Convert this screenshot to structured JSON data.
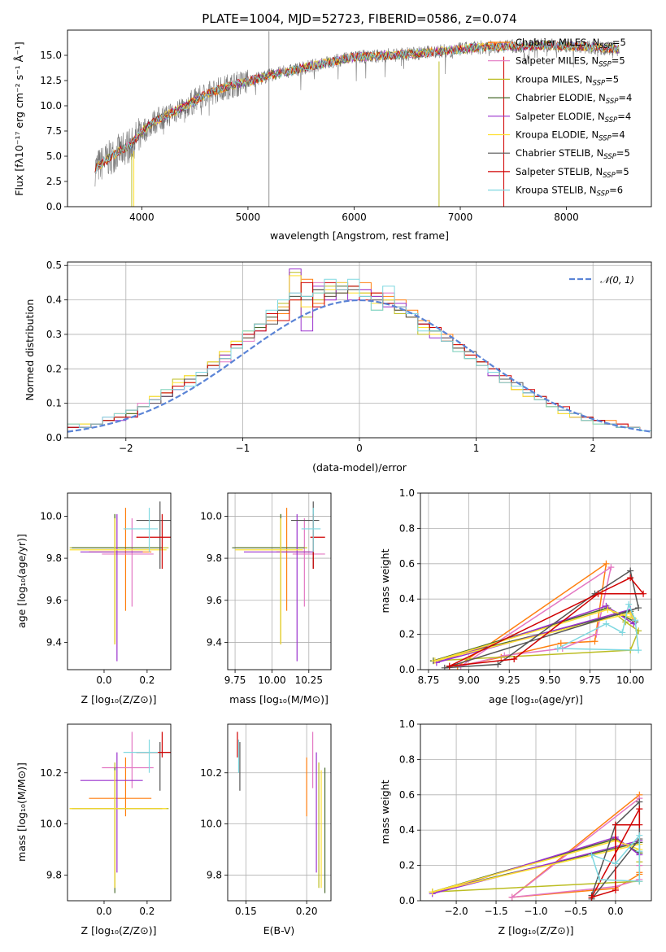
{
  "chart_data": [
    {
      "id": "spectrum",
      "type": "line",
      "title": "PLATE=1004, MJD=52723, FIBERID=0586, z=0.074",
      "xlabel": "wavelength [Angstrom, rest frame]",
      "ylabel": "Flux [fλ10⁻¹⁷ erg cm⁻² s⁻¹ Å⁻¹]",
      "xlim": [
        3300,
        8800
      ],
      "ylim": [
        0,
        17.5
      ],
      "xticks": [
        4000,
        5000,
        6000,
        7000,
        8000
      ],
      "yticks": [
        0.0,
        2.5,
        5.0,
        7.5,
        10.0,
        12.5,
        15.0
      ],
      "observed_continuum": [
        [
          3560,
          3.8
        ],
        [
          3650,
          4.5
        ],
        [
          3800,
          5.6
        ],
        [
          3900,
          6.2
        ],
        [
          4000,
          7.4
        ],
        [
          4100,
          8.3
        ],
        [
          4200,
          8.9
        ],
        [
          4400,
          9.9
        ],
        [
          4600,
          11.1
        ],
        [
          4800,
          11.9
        ],
        [
          5000,
          12.4
        ],
        [
          5200,
          13.0
        ],
        [
          5500,
          13.7
        ],
        [
          5800,
          14.4
        ],
        [
          6000,
          14.8
        ],
        [
          6300,
          15.0
        ],
        [
          6600,
          15.2
        ],
        [
          6900,
          15.5
        ],
        [
          7200,
          15.8
        ],
        [
          7500,
          15.9
        ],
        [
          7800,
          16.0
        ],
        [
          8100,
          15.9
        ],
        [
          8400,
          15.7
        ],
        [
          8500,
          15.6
        ]
      ],
      "legend_position": "upper right",
      "legend": [
        {
          "label": "Chabrier MILES, N",
          "sub": "SSP",
          "suffix": "=5",
          "color": "#ff7f0e"
        },
        {
          "label": "Salpeter MILES, N",
          "sub": "SSP",
          "suffix": "=5",
          "color": "#e377c2"
        },
        {
          "label": "Kroupa MILES, N",
          "sub": "SSP",
          "suffix": "=5",
          "color": "#bcbd22"
        },
        {
          "label": "Chabrier ELODIE, N",
          "sub": "SSP",
          "suffix": "=4",
          "color": "#4a6b2f"
        },
        {
          "label": "Salpeter ELODIE, N",
          "sub": "SSP",
          "suffix": "=4",
          "color": "#9a32cd"
        },
        {
          "label": "Kroupa ELODIE, N",
          "sub": "SSP",
          "suffix": "=4",
          "color": "#ffe033"
        },
        {
          "label": "Chabrier STELIB, N",
          "sub": "SSP",
          "suffix": "=5",
          "color": "#555555"
        },
        {
          "label": "Salpeter STELIB, N",
          "sub": "SSP",
          "suffix": "=5",
          "color": "#d00000"
        },
        {
          "label": "Kroupa STELIB, N",
          "sub": "SSP",
          "suffix": "=6",
          "color": "#7fd8e0"
        }
      ]
    },
    {
      "id": "residuals",
      "type": "line",
      "xlabel": "(data-model)/error",
      "ylabel": "Normed distribution",
      "xlim": [
        -2.5,
        2.5
      ],
      "ylim": [
        0,
        0.51
      ],
      "xticks": [
        -2,
        -1,
        0,
        1,
        2
      ],
      "yticks": [
        0.0,
        0.1,
        0.2,
        0.3,
        0.4,
        0.5
      ],
      "grid": true,
      "reference_label": "𝒩(0, 1)",
      "reference_color": "#5b84d6",
      "bin_width": 0.1,
      "bins_start": -2.5,
      "legend_position": "upper right"
    },
    {
      "id": "age_vs_Z",
      "type": "scatter",
      "xlabel": "Z [log₁₀(Z/Z⊙)]",
      "ylabel": "age  [log₁₀(age/yr)]",
      "xlim": [
        -0.17,
        0.31
      ],
      "ylim": [
        9.27,
        10.11
      ],
      "xticks": [
        0.0,
        0.2
      ],
      "yticks": [
        9.4,
        9.6,
        9.8,
        10.0
      ]
    },
    {
      "id": "age_vs_mass",
      "type": "scatter",
      "xlabel": "mass [log₁₀(M/M⊙)]",
      "xlim": [
        9.7,
        10.4
      ],
      "ylim": [
        9.27,
        10.11
      ],
      "xticks": [
        9.75,
        10.0,
        10.25
      ],
      "yticks": [
        9.4,
        9.6,
        9.8,
        10.0
      ],
      "grid": true
    },
    {
      "id": "weight_vs_age",
      "type": "line",
      "xlabel": "age  [log₁₀(age/yr)]",
      "ylabel": "mass weight",
      "xlim": [
        8.7,
        10.13
      ],
      "ylim": [
        0,
        1
      ],
      "xticks": [
        8.75,
        9.0,
        9.25,
        9.5,
        9.75,
        10.0
      ],
      "yticks": [
        0.0,
        0.2,
        0.4,
        0.6,
        0.8,
        1.0
      ],
      "grid": true
    },
    {
      "id": "mass_vs_Z",
      "type": "scatter",
      "xlabel": "Z [log₁₀(Z/Z⊙)]",
      "ylabel": "mass [log₁₀(M/M⊙)]",
      "xlim": [
        -0.17,
        0.31
      ],
      "ylim": [
        9.7,
        10.39
      ],
      "xticks": [
        0.0,
        0.2
      ],
      "yticks": [
        9.8,
        10.0,
        10.2
      ]
    },
    {
      "id": "mass_vs_ebv",
      "type": "scatter",
      "xlabel": "E(B-V)",
      "xlim": [
        0.135,
        0.22
      ],
      "ylim": [
        9.7,
        10.39
      ],
      "xticks": [
        0.15,
        0.2
      ],
      "yticks": [
        9.8,
        10.0,
        10.2
      ],
      "grid": true
    },
    {
      "id": "weight_vs_Z",
      "type": "line",
      "xlabel": "Z [log₁₀(Z/Z⊙)]",
      "ylabel": "mass weight",
      "xlim": [
        -2.45,
        0.45
      ],
      "ylim": [
        0,
        1
      ],
      "xticks": [
        -2.0,
        -1.5,
        -1.0,
        -0.5,
        0.0
      ],
      "yticks": [
        0.0,
        0.2,
        0.4,
        0.6,
        0.8,
        1.0
      ],
      "grid": true
    }
  ],
  "models": [
    {
      "name": "Chabrier MILES",
      "color": "#ff7f0e",
      "Z": 0.1,
      "age": 9.83,
      "mass": 10.1,
      "ebv": 0.2,
      "Zerr": [
        0.17,
        0.12
      ],
      "ageerr": [
        0.28,
        0.21
      ],
      "masserr": [
        0.07,
        0.16
      ],
      "ssp_age": [
        8.93,
        9.2,
        9.57,
        9.78,
        9.85
      ],
      "ssp_Z": [
        -1.3,
        0.0,
        0.3,
        0.3,
        0.3
      ],
      "ssp_w": [
        0.02,
        0.07,
        0.15,
        0.16,
        0.6
      ]
    },
    {
      "name": "Salpeter MILES",
      "color": "#e377c2",
      "Z": 0.13,
      "age": 9.82,
      "mass": 10.22,
      "ebv": 0.205,
      "Zerr": [
        0.14,
        0.1
      ],
      "ageerr": [
        0.25,
        0.17
      ],
      "masserr": [
        0.08,
        0.14
      ],
      "ssp_age": [
        8.95,
        9.22,
        9.58,
        9.79,
        9.88
      ],
      "ssp_Z": [
        -1.3,
        0.0,
        0.3,
        0.3,
        0.3
      ],
      "ssp_w": [
        0.02,
        0.08,
        0.12,
        0.2,
        0.58
      ]
    },
    {
      "name": "Kroupa MILES",
      "color": "#bcbd22",
      "Z": 0.05,
      "age": 9.85,
      "mass": 10.06,
      "ebv": 0.21,
      "Zerr": [
        0.21,
        0.25
      ],
      "ageerr": [
        0.45,
        0.16
      ],
      "masserr": [
        0.31,
        0.18
      ],
      "ssp_age": [
        8.78,
        9.86,
        9.97,
        10.05,
        10.0
      ],
      "ssp_Z": [
        -2.3,
        0.0,
        0.3,
        0.3,
        0.3
      ],
      "ssp_w": [
        0.05,
        0.35,
        0.27,
        0.22,
        0.11
      ]
    },
    {
      "name": "Chabrier ELODIE",
      "color": "#4a6b2f",
      "Z": 0.05,
      "age": 9.85,
      "mass": 10.06,
      "ebv": 0.215,
      "Zerr": [
        0.2,
        0.22
      ],
      "ageerr": [
        0.46,
        0.16
      ],
      "masserr": [
        0.33,
        0.16
      ],
      "ssp_age": [
        8.78,
        9.86,
        10.03,
        10.0
      ],
      "ssp_Z": [
        -2.3,
        0.0,
        0.3,
        0.3
      ],
      "ssp_w": [
        0.05,
        0.35,
        0.27,
        0.33
      ]
    },
    {
      "name": "Salpeter ELODIE",
      "color": "#9a32cd",
      "Z": 0.06,
      "age": 9.83,
      "mass": 10.17,
      "ebv": 0.208,
      "Zerr": [
        0.17,
        0.12
      ],
      "ageerr": [
        0.52,
        0.18
      ],
      "masserr": [
        0.36,
        0.11
      ],
      "ssp_age": [
        8.8,
        9.85,
        10.02,
        10.0
      ],
      "ssp_Z": [
        -2.3,
        0.0,
        0.3,
        0.3
      ],
      "ssp_w": [
        0.04,
        0.36,
        0.26,
        0.34
      ]
    },
    {
      "name": "Kroupa ELODIE",
      "color": "#ffe033",
      "Z": 0.05,
      "age": 9.84,
      "mass": 10.06,
      "ebv": 0.212,
      "Zerr": [
        0.21,
        0.24
      ],
      "ageerr": [
        0.45,
        0.15
      ],
      "masserr": [
        0.31,
        0.15
      ],
      "ssp_age": [
        8.79,
        9.86,
        10.02,
        10.0
      ],
      "ssp_Z": [
        -2.3,
        0.0,
        0.3,
        0.3
      ],
      "ssp_w": [
        0.05,
        0.34,
        0.29,
        0.32
      ]
    },
    {
      "name": "Chabrier STELIB",
      "color": "#555555",
      "Z": 0.26,
      "age": 9.98,
      "mass": 10.28,
      "ebv": 0.145,
      "Zerr": [
        0.11,
        0.05
      ],
      "ageerr": [
        0.23,
        0.09
      ],
      "masserr": [
        0.15,
        0.04
      ],
      "ssp_age": [
        8.85,
        9.18,
        9.78,
        10.0,
        10.05
      ],
      "ssp_Z": [
        -0.3,
        -0.3,
        0.0,
        0.3,
        0.3
      ],
      "ssp_w": [
        0.01,
        0.03,
        0.43,
        0.56,
        0.35
      ]
    },
    {
      "name": "Salpeter STELIB",
      "color": "#d00000",
      "Z": 0.27,
      "age": 9.9,
      "mass": 10.28,
      "ebv": 0.143,
      "Zerr": [
        0.12,
        0.11
      ],
      "ageerr": [
        0.15,
        0.11
      ],
      "masserr": [
        0.02,
        0.08
      ],
      "ssp_age": [
        8.88,
        9.28,
        9.8,
        10.08,
        10.0
      ],
      "ssp_Z": [
        -0.3,
        0.0,
        0.0,
        0.3,
        0.3
      ],
      "ssp_w": [
        0.02,
        0.06,
        0.43,
        0.43,
        0.52
      ]
    },
    {
      "name": "Kroupa STELIB",
      "color": "#7fd8e0",
      "Z": 0.21,
      "age": 9.94,
      "mass": 10.28,
      "ebv": 0.144,
      "Zerr": [
        0.12,
        0.04
      ],
      "ageerr": [
        0.11,
        0.1
      ],
      "masserr": [
        0.08,
        0.05
      ],
      "ssp_age": [
        9.55,
        9.85,
        9.95,
        9.99,
        10.03,
        10.05
      ],
      "ssp_Z": [
        -0.2,
        -0.3,
        0.0,
        0.3,
        0.3,
        0.3
      ],
      "ssp_w": [
        0.12,
        0.26,
        0.21,
        0.37,
        0.28,
        0.11
      ]
    }
  ],
  "histograms": [
    {
      "color": "#ff7f0e",
      "values": [
        0.03,
        0.03,
        0.04,
        0.05,
        0.06,
        0.07,
        0.09,
        0.11,
        0.13,
        0.15,
        0.16,
        0.19,
        0.21,
        0.24,
        0.26,
        0.29,
        0.32,
        0.34,
        0.36,
        0.4,
        0.46,
        0.39,
        0.41,
        0.42,
        0.44,
        0.45,
        0.42,
        0.41,
        0.4,
        0.37,
        0.34,
        0.31,
        0.3,
        0.27,
        0.25,
        0.22,
        0.19,
        0.17,
        0.14,
        0.13,
        0.11,
        0.09,
        0.08,
        0.07,
        0.06,
        0.05,
        0.05,
        0.04,
        0.03,
        0.02
      ]
    },
    {
      "color": "#e377c2",
      "values": [
        0.04,
        0.03,
        0.04,
        0.06,
        0.07,
        0.08,
        0.1,
        0.1,
        0.12,
        0.14,
        0.17,
        0.18,
        0.2,
        0.22,
        0.27,
        0.28,
        0.33,
        0.35,
        0.38,
        0.42,
        0.41,
        0.45,
        0.4,
        0.43,
        0.44,
        0.43,
        0.4,
        0.42,
        0.38,
        0.36,
        0.33,
        0.32,
        0.29,
        0.26,
        0.24,
        0.21,
        0.19,
        0.16,
        0.15,
        0.12,
        0.11,
        0.1,
        0.08,
        0.07,
        0.06,
        0.05,
        0.04,
        0.04,
        0.03,
        0.02
      ]
    },
    {
      "color": "#bcbd22",
      "values": [
        0.04,
        0.04,
        0.04,
        0.05,
        0.06,
        0.07,
        0.09,
        0.12,
        0.13,
        0.17,
        0.18,
        0.18,
        0.21,
        0.25,
        0.28,
        0.31,
        0.32,
        0.36,
        0.39,
        0.48,
        0.35,
        0.4,
        0.44,
        0.42,
        0.44,
        0.42,
        0.37,
        0.4,
        0.36,
        0.35,
        0.3,
        0.31,
        0.28,
        0.25,
        0.23,
        0.22,
        0.18,
        0.17,
        0.14,
        0.12,
        0.11,
        0.09,
        0.07,
        0.06,
        0.06,
        0.04,
        0.04,
        0.03,
        0.03,
        0.02
      ]
    },
    {
      "color": "#4a6b2f",
      "values": [
        0.03,
        0.03,
        0.04,
        0.05,
        0.06,
        0.07,
        0.09,
        0.11,
        0.12,
        0.15,
        0.17,
        0.19,
        0.22,
        0.24,
        0.27,
        0.3,
        0.32,
        0.35,
        0.37,
        0.41,
        0.41,
        0.43,
        0.42,
        0.44,
        0.44,
        0.42,
        0.41,
        0.4,
        0.37,
        0.36,
        0.32,
        0.31,
        0.28,
        0.26,
        0.23,
        0.21,
        0.19,
        0.17,
        0.15,
        0.13,
        0.11,
        0.09,
        0.08,
        0.06,
        0.05,
        0.05,
        0.04,
        0.03,
        0.03,
        0.02
      ]
    },
    {
      "color": "#9a32cd",
      "values": [
        0.03,
        0.03,
        0.04,
        0.05,
        0.05,
        0.06,
        0.09,
        0.11,
        0.12,
        0.14,
        0.17,
        0.19,
        0.2,
        0.24,
        0.27,
        0.3,
        0.31,
        0.36,
        0.38,
        0.49,
        0.31,
        0.44,
        0.4,
        0.45,
        0.4,
        0.43,
        0.41,
        0.38,
        0.39,
        0.35,
        0.33,
        0.29,
        0.28,
        0.26,
        0.24,
        0.21,
        0.18,
        0.16,
        0.15,
        0.13,
        0.11,
        0.1,
        0.08,
        0.06,
        0.05,
        0.05,
        0.04,
        0.03,
        0.03,
        0.02
      ]
    },
    {
      "color": "#ffe033",
      "values": [
        0.04,
        0.04,
        0.04,
        0.05,
        0.07,
        0.08,
        0.09,
        0.12,
        0.14,
        0.16,
        0.18,
        0.19,
        0.22,
        0.25,
        0.28,
        0.31,
        0.33,
        0.36,
        0.38,
        0.47,
        0.38,
        0.42,
        0.43,
        0.45,
        0.42,
        0.42,
        0.39,
        0.4,
        0.37,
        0.35,
        0.32,
        0.3,
        0.28,
        0.26,
        0.24,
        0.21,
        0.19,
        0.16,
        0.14,
        0.12,
        0.11,
        0.09,
        0.07,
        0.06,
        0.05,
        0.04,
        0.04,
        0.03,
        0.03,
        0.02
      ]
    },
    {
      "color": "#555555",
      "values": [
        0.03,
        0.03,
        0.04,
        0.05,
        0.06,
        0.08,
        0.09,
        0.1,
        0.12,
        0.15,
        0.17,
        0.18,
        0.21,
        0.23,
        0.26,
        0.29,
        0.33,
        0.33,
        0.37,
        0.41,
        0.4,
        0.43,
        0.41,
        0.42,
        0.43,
        0.41,
        0.4,
        0.39,
        0.37,
        0.35,
        0.33,
        0.31,
        0.29,
        0.26,
        0.25,
        0.22,
        0.2,
        0.17,
        0.16,
        0.13,
        0.12,
        0.1,
        0.08,
        0.07,
        0.06,
        0.05,
        0.04,
        0.03,
        0.03,
        0.02
      ]
    },
    {
      "color": "#d00000",
      "values": [
        0.03,
        0.03,
        0.04,
        0.05,
        0.06,
        0.06,
        0.09,
        0.11,
        0.13,
        0.15,
        0.16,
        0.19,
        0.21,
        0.23,
        0.27,
        0.3,
        0.31,
        0.36,
        0.34,
        0.4,
        0.45,
        0.38,
        0.45,
        0.43,
        0.44,
        0.4,
        0.42,
        0.39,
        0.38,
        0.36,
        0.33,
        0.32,
        0.28,
        0.27,
        0.24,
        0.22,
        0.2,
        0.18,
        0.15,
        0.14,
        0.12,
        0.1,
        0.09,
        0.07,
        0.06,
        0.05,
        0.04,
        0.04,
        0.03,
        0.02
      ]
    },
    {
      "color": "#7fd8e0",
      "values": [
        0.04,
        0.03,
        0.04,
        0.06,
        0.07,
        0.08,
        0.09,
        0.11,
        0.14,
        0.14,
        0.15,
        0.19,
        0.2,
        0.23,
        0.26,
        0.31,
        0.33,
        0.37,
        0.4,
        0.42,
        0.41,
        0.42,
        0.46,
        0.43,
        0.46,
        0.41,
        0.37,
        0.44,
        0.38,
        0.36,
        0.31,
        0.31,
        0.28,
        0.25,
        0.23,
        0.21,
        0.19,
        0.16,
        0.15,
        0.13,
        0.11,
        0.09,
        0.08,
        0.07,
        0.05,
        0.04,
        0.04,
        0.03,
        0.03,
        0.02
      ]
    }
  ]
}
